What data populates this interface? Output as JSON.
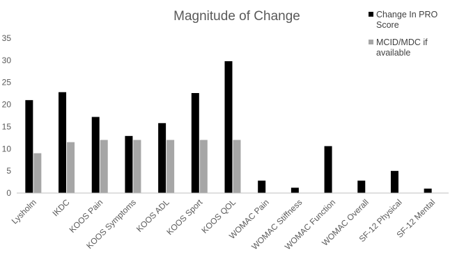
{
  "chart_data": {
    "type": "bar",
    "title": "Magnitude of Change",
    "xlabel": "",
    "ylabel": "",
    "ylim": [
      0,
      35
    ],
    "yticks": [
      0,
      5,
      10,
      15,
      20,
      25,
      30,
      35
    ],
    "grid": false,
    "legend_position": "top-right",
    "categories": [
      "Lysholm",
      "IKDC",
      "KOOS Pain",
      "KOOS Symptoms",
      "KOOS ADL",
      "KOOS Sport",
      "KOOS QOL",
      "WOMAC Pain",
      "WOMAC Stiffness",
      "WOMAC Function",
      "WOMAC Overall",
      "SF-12 Physical",
      "SF-12 Mental"
    ],
    "series": [
      {
        "name": "Change In PRO Score",
        "color": "#000000",
        "values": [
          21,
          22.8,
          17.2,
          12.9,
          15.8,
          22.6,
          29.8,
          2.8,
          1.2,
          10.6,
          2.8,
          5,
          1
        ]
      },
      {
        "name": "MCID/MDC if available",
        "color": "#a6a6a6",
        "values": [
          9,
          11.5,
          12,
          12,
          12,
          12,
          12,
          null,
          null,
          null,
          null,
          null,
          null
        ]
      }
    ]
  }
}
